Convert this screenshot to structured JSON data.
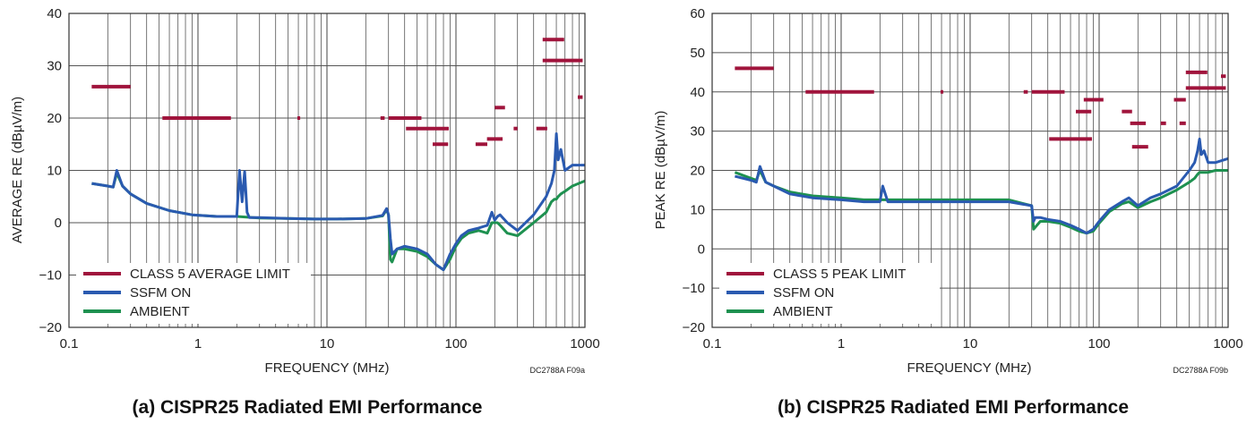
{
  "chart_data": [
    {
      "id": "a",
      "type": "line",
      "caption": "(a) CISPR25 Radiated EMI Performance",
      "code": "DC2788A F09a",
      "xlabel": "FREQUENCY (MHz)",
      "ylabel": "AVERAGE RE (dBµV/m)",
      "xscale": "log",
      "xlim": [
        0.1,
        1000
      ],
      "ylim": [
        -20,
        40
      ],
      "xtick_labels": [
        "0.1",
        "1",
        "10",
        "100",
        "1000"
      ],
      "ytick_labels": [
        "40",
        "30",
        "20",
        "10",
        "0",
        "−10",
        "−20"
      ],
      "yticks": [
        40,
        30,
        20,
        10,
        0,
        -10,
        -20
      ],
      "legend": [
        {
          "label": "CLASS 5 AVERAGE LIMIT",
          "color": "#a0143c"
        },
        {
          "label": "SSFM ON",
          "color": "#2a5ab0"
        },
        {
          "label": "AMBIENT",
          "color": "#1e9150"
        }
      ],
      "limit_segments": [
        [
          0.15,
          0.3,
          26
        ],
        [
          0.53,
          1.8,
          20
        ],
        [
          5.9,
          6.2,
          20
        ],
        [
          26,
          28,
          20
        ],
        [
          30,
          54,
          20
        ],
        [
          41,
          88,
          18
        ],
        [
          66,
          87,
          15
        ],
        [
          142,
          175,
          15
        ],
        [
          174,
          230,
          16
        ],
        [
          200,
          240,
          22
        ],
        [
          280,
          300,
          18
        ],
        [
          420,
          510,
          18
        ],
        [
          470,
          690,
          35
        ],
        [
          470,
          960,
          31
        ],
        [
          880,
          960,
          24
        ]
      ],
      "series": [
        {
          "name": "SSFM ON",
          "color": "#2a5ab0",
          "x": [
            0.15,
            0.2,
            0.22,
            0.235,
            0.26,
            0.3,
            0.4,
            0.6,
            0.9,
            1.4,
            2.0,
            2.1,
            2.2,
            2.3,
            2.4,
            2.5,
            3,
            5,
            8,
            12,
            20,
            27,
            29,
            30,
            31,
            32,
            35,
            40,
            50,
            60,
            70,
            80,
            90,
            100,
            110,
            125,
            150,
            175,
            190,
            200,
            210,
            220,
            250,
            300,
            400,
            500,
            550,
            580,
            600,
            620,
            650,
            700,
            800,
            1000
          ],
          "y": [
            7.5,
            7,
            6.8,
            10,
            7,
            5.5,
            3.7,
            2.3,
            1.5,
            1.2,
            1.2,
            10,
            4,
            9.8,
            2,
            1,
            1,
            0.8,
            0.7,
            0.7,
            0.8,
            1.4,
            2.7,
            1.5,
            -3,
            -6,
            -5,
            -4.5,
            -5,
            -6,
            -8,
            -9,
            -6,
            -4,
            -2.5,
            -1.5,
            -1,
            -0.5,
            2,
            0.5,
            1.2,
            1.5,
            0,
            -1.5,
            1.5,
            5,
            7.5,
            10,
            17,
            12,
            14,
            10,
            11,
            11
          ]
        },
        {
          "name": "AMBIENT",
          "color": "#1e9150",
          "x": [
            0.15,
            0.2,
            0.22,
            0.235,
            0.26,
            0.3,
            0.4,
            0.6,
            0.9,
            1.4,
            2.0,
            3,
            5,
            8,
            12,
            20,
            27,
            29,
            30,
            31,
            32,
            35,
            40,
            50,
            60,
            70,
            80,
            90,
            100,
            110,
            125,
            150,
            175,
            190,
            200,
            210,
            220,
            250,
            300,
            400,
            500,
            550,
            580,
            600,
            620,
            650,
            700,
            800,
            1000
          ],
          "y": [
            7.5,
            7,
            6.8,
            9.5,
            7,
            5.5,
            3.7,
            2.3,
            1.5,
            1.2,
            1.2,
            0.9,
            0.8,
            0.7,
            0.7,
            0.8,
            1.3,
            2.5,
            1.5,
            -7,
            -7.5,
            -5,
            -5,
            -5.5,
            -6.5,
            -8,
            -9,
            -7,
            -4.5,
            -3,
            -2,
            -1.5,
            -2,
            0,
            0,
            0,
            -0.5,
            -2,
            -2.5,
            0,
            2,
            4,
            4.5,
            4.5,
            5,
            5.5,
            6,
            7,
            8
          ]
        }
      ]
    },
    {
      "id": "b",
      "type": "line",
      "caption": "(b) CISPR25 Radiated EMI Performance",
      "code": "DC2788A F09b",
      "xlabel": "FREQUENCY (MHz)",
      "ylabel": "PEAK RE (dBµV/m)",
      "xscale": "log",
      "xlim": [
        0.1,
        1000
      ],
      "ylim": [
        -20,
        60
      ],
      "xtick_labels": [
        "0.1",
        "1",
        "10",
        "100",
        "1000"
      ],
      "ytick_labels": [
        "60",
        "50",
        "40",
        "30",
        "20",
        "10",
        "0",
        "−10",
        "−20"
      ],
      "yticks": [
        60,
        50,
        40,
        30,
        20,
        10,
        0,
        -10,
        -20
      ],
      "legend": [
        {
          "label": "CLASS 5 PEAK LIMIT",
          "color": "#a0143c"
        },
        {
          "label": "SSFM ON",
          "color": "#2a5ab0"
        },
        {
          "label": "AMBIENT",
          "color": "#1e9150"
        }
      ],
      "limit_segments": [
        [
          0.15,
          0.3,
          46
        ],
        [
          0.53,
          1.8,
          40
        ],
        [
          5.9,
          6.2,
          40
        ],
        [
          26,
          28,
          40
        ],
        [
          30,
          54,
          40
        ],
        [
          41,
          88,
          28
        ],
        [
          66,
          87,
          35
        ],
        [
          76,
          108,
          38
        ],
        [
          150,
          180,
          35
        ],
        [
          174,
          230,
          32
        ],
        [
          180,
          240,
          26
        ],
        [
          300,
          330,
          32
        ],
        [
          380,
          470,
          38
        ],
        [
          420,
          470,
          32
        ],
        [
          470,
          690,
          45
        ],
        [
          470,
          960,
          41
        ],
        [
          880,
          960,
          44
        ]
      ],
      "series": [
        {
          "name": "SSFM ON",
          "color": "#2a5ab0",
          "x": [
            0.15,
            0.2,
            0.22,
            0.235,
            0.26,
            0.3,
            0.4,
            0.6,
            1,
            1.5,
            2,
            2.1,
            2.3,
            3,
            5,
            10,
            20,
            30,
            31,
            32,
            35,
            40,
            50,
            60,
            70,
            80,
            90,
            100,
            120,
            150,
            170,
            200,
            250,
            300,
            400,
            500,
            550,
            580,
            600,
            620,
            650,
            700,
            800,
            1000
          ],
          "y": [
            18.5,
            17.5,
            17,
            21,
            17,
            16,
            14,
            13,
            12.5,
            12,
            12,
            16,
            12,
            12,
            12,
            12,
            12,
            11,
            7,
            8,
            8,
            7.5,
            7,
            6,
            5,
            4,
            5,
            7,
            10,
            12,
            13,
            11,
            13,
            14,
            16,
            20,
            22,
            25,
            28,
            24,
            25,
            22,
            22,
            23
          ]
        },
        {
          "name": "AMBIENT",
          "color": "#1e9150",
          "x": [
            0.15,
            0.2,
            0.22,
            0.235,
            0.26,
            0.3,
            0.4,
            0.6,
            1,
            1.5,
            2,
            3,
            5,
            10,
            20,
            30,
            31,
            32,
            35,
            40,
            50,
            60,
            70,
            80,
            90,
            100,
            120,
            150,
            170,
            200,
            250,
            300,
            400,
            500,
            550,
            580,
            600,
            620,
            650,
            700,
            800,
            1000
          ],
          "y": [
            19.5,
            18,
            17.5,
            20,
            17,
            16,
            14.5,
            13.5,
            13,
            12.5,
            12.5,
            12.5,
            12.5,
            12.5,
            12.5,
            11,
            5,
            5.5,
            7,
            7,
            6.5,
            5.5,
            4.5,
            4,
            4.5,
            6.5,
            9.5,
            11.5,
            12,
            10.5,
            12,
            13,
            15,
            17,
            18,
            19,
            19.5,
            19.5,
            19.5,
            19.5,
            20,
            20
          ]
        }
      ]
    }
  ]
}
